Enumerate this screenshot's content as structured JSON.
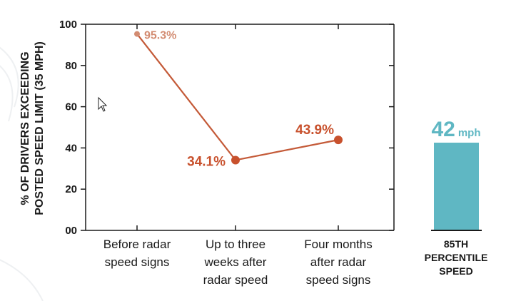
{
  "chart_data": [
    {
      "type": "line",
      "ylabel_lines": [
        "% OF DRIVERS EXCEEDING",
        "POSTED SPEED LIMIT (35 MPH)"
      ],
      "y_ticks": [
        "00",
        "20",
        "40",
        "60",
        "80",
        "100"
      ],
      "ylim": [
        0,
        100
      ],
      "grid": false,
      "categories": [
        [
          "Before radar",
          "speed signs"
        ],
        [
          "Up to three",
          "weeks after",
          "radar speed"
        ],
        [
          "Four months",
          "after radar",
          "speed signs"
        ]
      ],
      "values": [
        95.3,
        34.1,
        43.9
      ],
      "data_labels": [
        "95.3%",
        "34.1%",
        "43.9%"
      ],
      "colors": {
        "line": "#c45a38",
        "first_point": "#d38c72",
        "points": "#c8512d"
      }
    },
    {
      "type": "bar",
      "value": 42,
      "value_label": "42",
      "unit": "mph",
      "category_lines": [
        "85TH",
        "PERCENTILE",
        "SPEED"
      ],
      "colors": {
        "bar": "#5fb7c3",
        "text": "#5fb7c3"
      }
    }
  ]
}
